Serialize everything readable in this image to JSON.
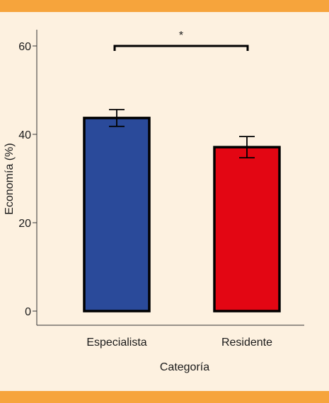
{
  "colors": {
    "background": "#fdf1e0",
    "band": "#f6a43c",
    "axis": "#333333",
    "outline": "#000000"
  },
  "chart_data": {
    "type": "bar",
    "categories": [
      "Especialista",
      "Residente"
    ],
    "values": [
      43.7,
      37.1
    ],
    "errors": [
      1.9,
      2.4
    ],
    "bar_colors": [
      "#2a4a9a",
      "#e30613"
    ],
    "title": "",
    "xlabel": "Categoría",
    "ylabel": "Economía (%)",
    "ylim": [
      0,
      60
    ],
    "yticks": [
      0,
      20,
      40,
      60
    ],
    "grid": false,
    "significance": {
      "from": "Especialista",
      "to": "Residente",
      "y": 60,
      "label": "*"
    }
  }
}
